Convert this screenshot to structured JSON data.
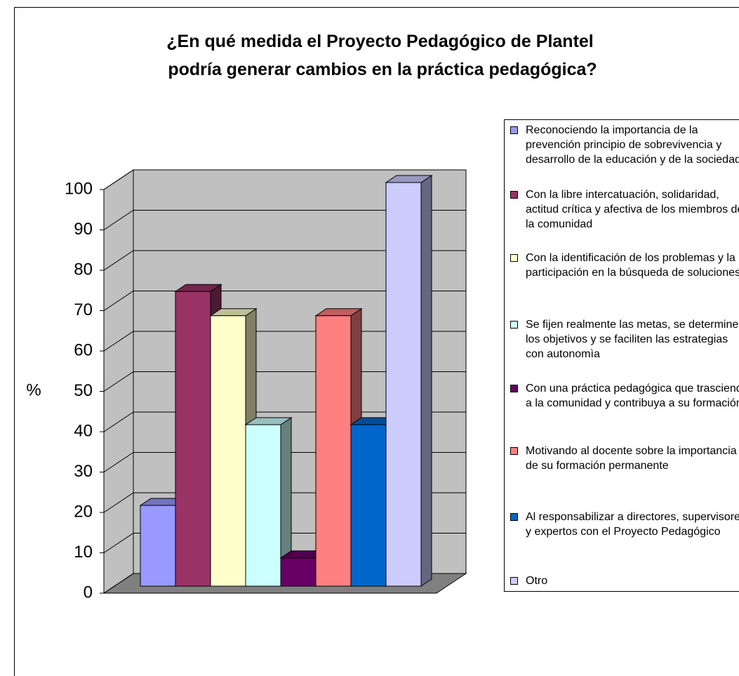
{
  "chart_data": {
    "type": "bar",
    "title": "¿En qué medida el Proyecto Pedagógico de Plantel podría generar cambios en la práctica pedagógica?",
    "y_label": "%",
    "ylim": [
      0,
      100
    ],
    "yticks": [
      0,
      10,
      20,
      30,
      40,
      50,
      60,
      70,
      80,
      90,
      100
    ],
    "grid": true,
    "series": [
      {
        "name": "Reconociendo  la importancia de la prevención principio de sobrevivencia y desarrollo de la educación y de la sociedad",
        "color": "#9999ff",
        "values": [
          20
        ]
      },
      {
        "name": "Con la libre intercatuación, solidaridad, actitud crítica y afectiva de los miembros de la comunidad",
        "color": "#993366",
        "values": [
          73
        ]
      },
      {
        "name": "Con la identificación de los problemas y la participación en la búsqueda de soluciones.",
        "color": "#ffffcc",
        "values": [
          67
        ]
      },
      {
        "name": "Se fijen realmente  las metas, se determinen los objetivos y se faciliten las estrategias con autonomìa",
        "color": "#ccffff",
        "values": [
          40
        ]
      },
      {
        "name": "Con una práctica pedagógica que trascienda a la comunidad y contribuya a su formación",
        "color": "#660066",
        "values": [
          7
        ]
      },
      {
        "name": "Motivando al docente sobre la importancia de su formación permanente",
        "color": "#ff8080",
        "values": [
          67
        ]
      },
      {
        "name": "Al responsabilizar a directores, supervisores y expertos con el Proyecto Pedagógico",
        "color": "#0066cc",
        "values": [
          40
        ]
      },
      {
        "name": "Otro",
        "color": "#ccccff",
        "values": [
          100
        ]
      }
    ]
  }
}
